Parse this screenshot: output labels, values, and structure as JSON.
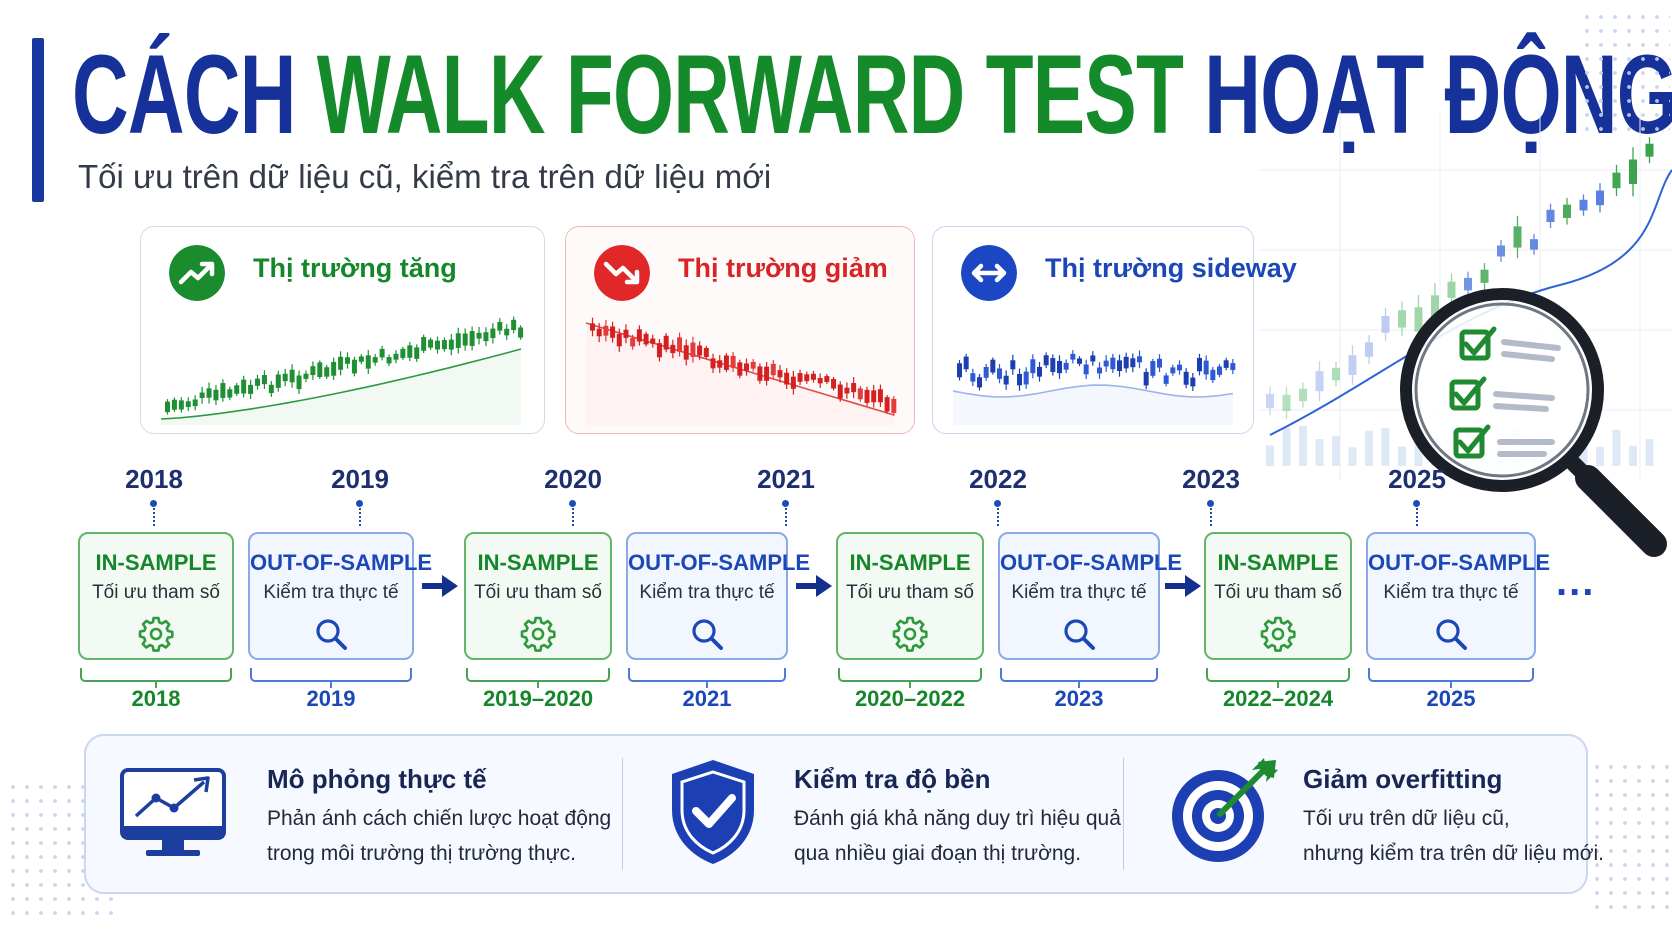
{
  "header": {
    "title_part1": "CÁCH",
    "title_part2": "WALK FORWARD TEST",
    "title_part3": "HOẠT ĐỘNG",
    "subtitle": "Tối ưu trên dữ liệu cũ, kiểm tra trên dữ liệu mới"
  },
  "colors": {
    "primary_blue": "#16329a",
    "green": "#158a2a",
    "red": "#e02828",
    "oos_blue": "#1b47b8"
  },
  "markets": [
    {
      "title": "Thị trường tăng",
      "icon": "trend-up-icon",
      "trend": "up"
    },
    {
      "title": "Thị trường giảm",
      "icon": "trend-down-icon",
      "trend": "down"
    },
    {
      "title": "Thị trường sideway",
      "icon": "sideways-arrow-icon",
      "trend": "sideways"
    }
  ],
  "timeline": {
    "years_top": [
      "2018",
      "2019",
      "2020",
      "2021",
      "2022",
      "2023",
      "2025"
    ],
    "phases": [
      {
        "type": "in-sample",
        "title": "IN-SAMPLE",
        "desc": "Tối ưu tham số",
        "icon": "gear-icon",
        "period": "2018"
      },
      {
        "type": "out-of-sample",
        "title": "OUT-OF-SAMPLE",
        "desc": "Kiểm tra thực tế",
        "icon": "search-icon",
        "period": "2019"
      },
      {
        "type": "in-sample",
        "title": "IN-SAMPLE",
        "desc": "Tối ưu tham số",
        "icon": "gear-icon",
        "period": "2019–2020"
      },
      {
        "type": "out-of-sample",
        "title": "OUT-OF-SAMPLE",
        "desc": "Kiểm tra thực tế",
        "icon": "search-icon",
        "period": "2021"
      },
      {
        "type": "in-sample",
        "title": "IN-SAMPLE",
        "desc": "Tối ưu tham số",
        "icon": "gear-icon",
        "period": "2020–2022"
      },
      {
        "type": "out-of-sample",
        "title": "OUT-OF-SAMPLE",
        "desc": "Kiểm tra thực tế",
        "icon": "search-icon",
        "period": "2023"
      },
      {
        "type": "in-sample",
        "title": "IN-SAMPLE",
        "desc": "Tối ưu tham số",
        "icon": "gear-icon",
        "period": "2022–2024"
      },
      {
        "type": "out-of-sample",
        "title": "OUT-OF-SAMPLE",
        "desc": "Kiểm tra thực tế",
        "icon": "search-icon",
        "period": "2025"
      }
    ],
    "continuation": "..."
  },
  "benefits": [
    {
      "icon": "monitor-chart-icon",
      "title": "Mô phỏng thực tế",
      "line1": "Phản ánh cách chiến lược hoạt động",
      "line2": "trong môi trường thị trường thực."
    },
    {
      "icon": "shield-check-icon",
      "title": "Kiểm tra độ bền",
      "line1": "Đánh giá khả năng duy trì hiệu quả",
      "line2": "qua nhiều giai đoạn thị trường."
    },
    {
      "icon": "target-arrow-icon",
      "title": "Giảm overfitting",
      "line1": "Tối ưu trên dữ liệu cũ,",
      "line2": "nhưng kiểm tra trên dữ liệu mới."
    }
  ]
}
